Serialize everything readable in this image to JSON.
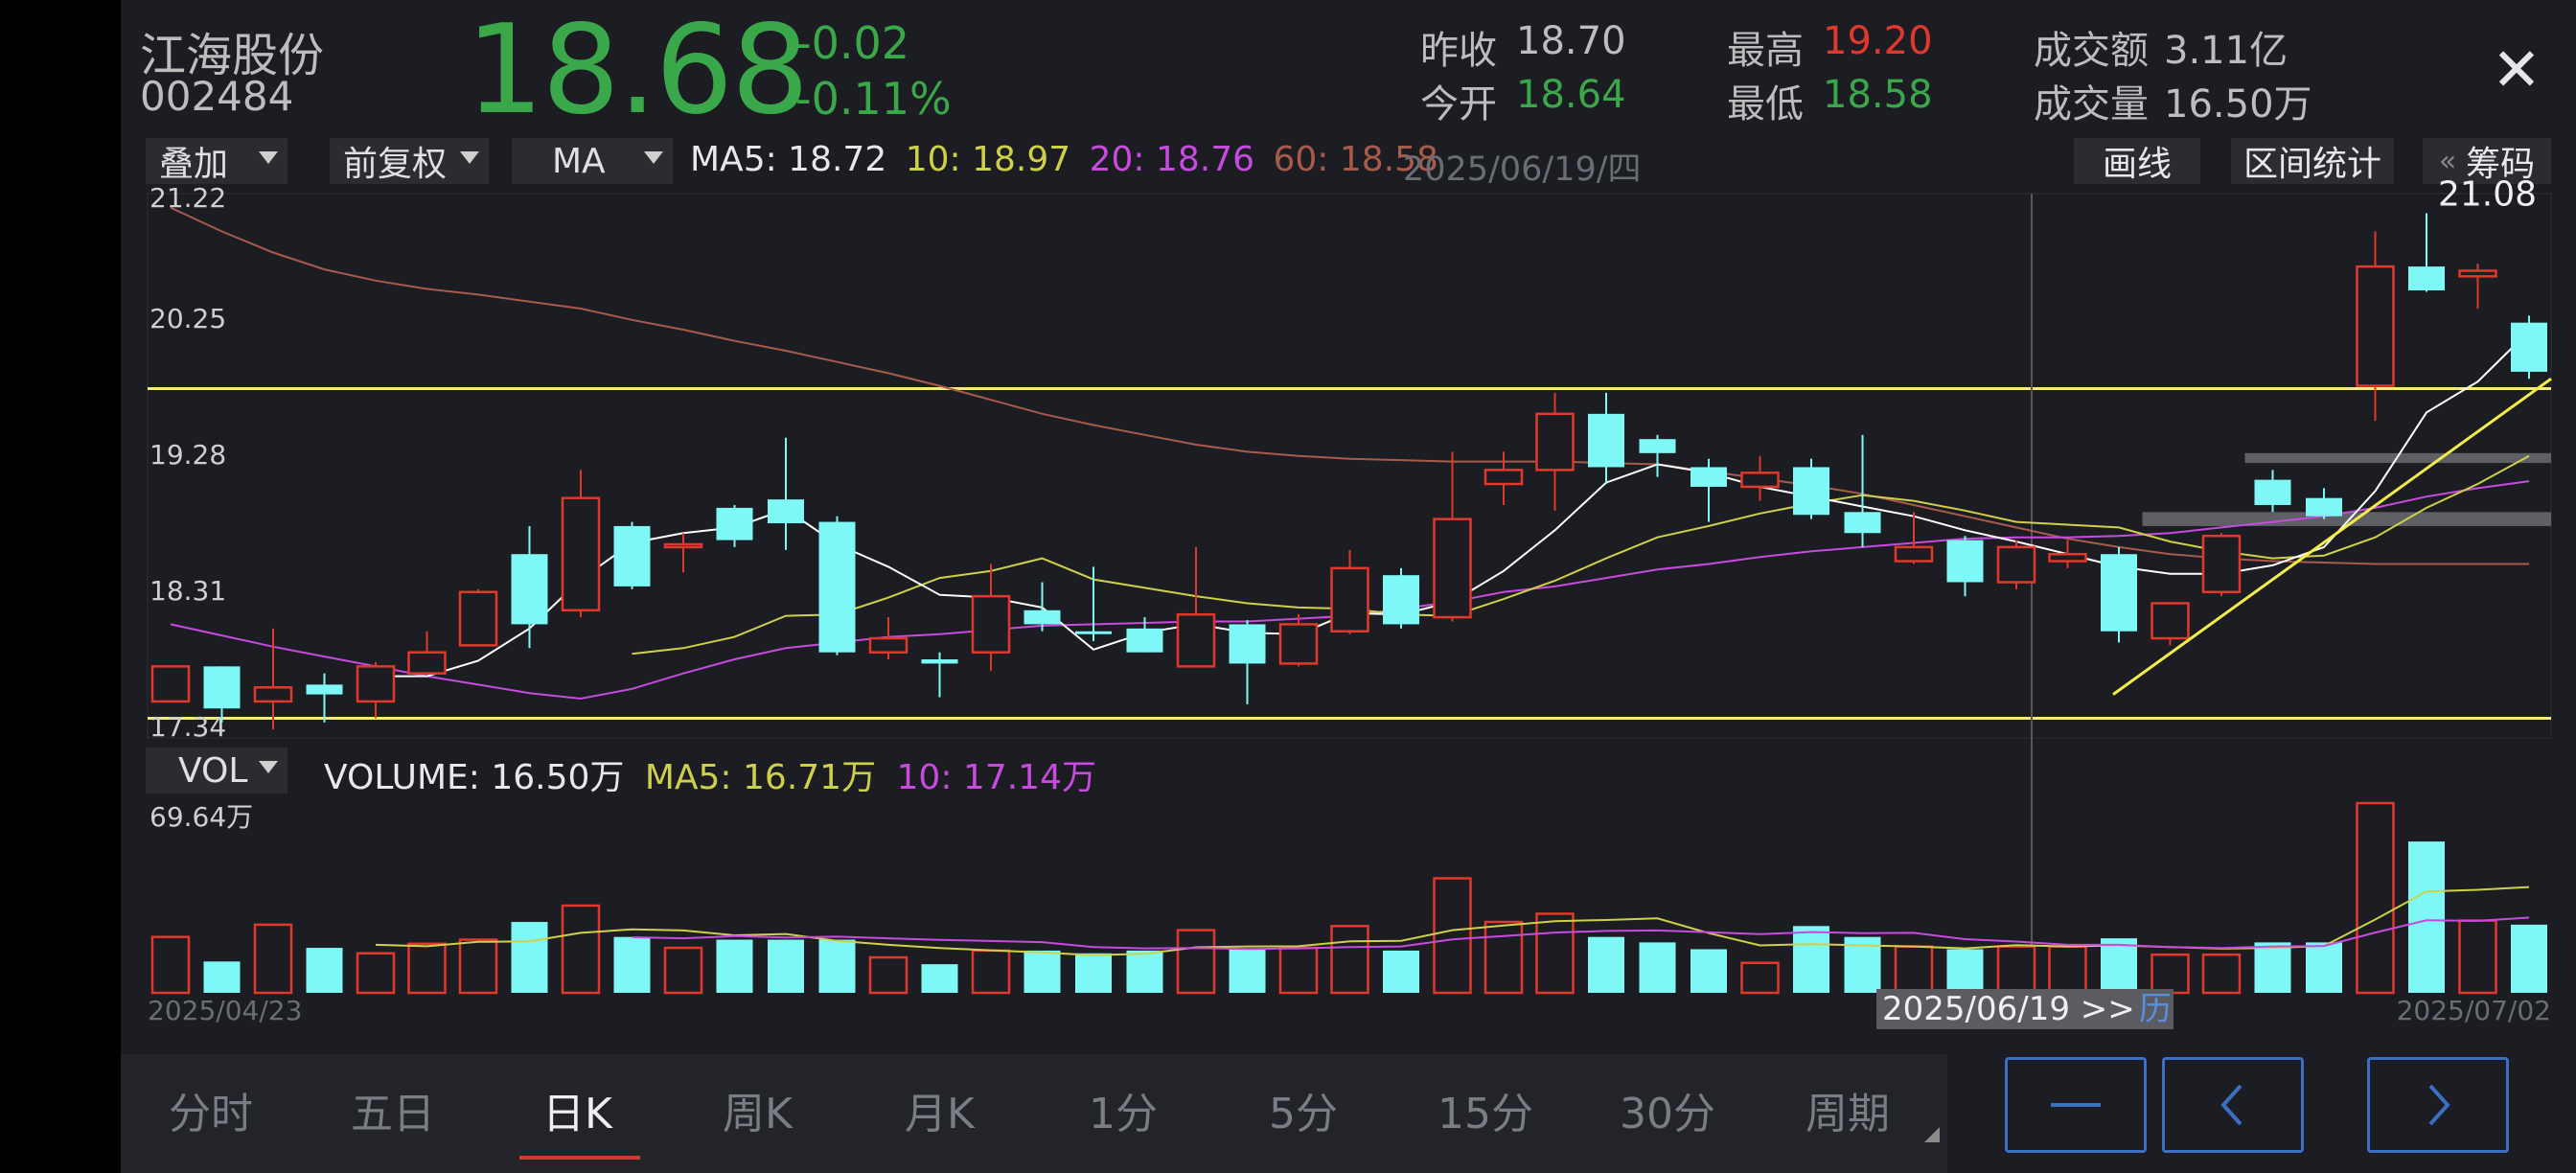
{
  "header": {
    "name": "江海股份",
    "code": "002484",
    "price": "18.68",
    "change": "-0.02",
    "change_pct": "-0.11%",
    "quotes": {
      "prev_close_label": "昨收",
      "prev_close": "18.70",
      "open_label": "今开",
      "open": "18.64",
      "high_label": "最高",
      "high": "19.20",
      "low_label": "最低",
      "low": "18.58",
      "amount_label": "成交额",
      "amount": "3.11亿",
      "volume_label": "成交量",
      "volume": "16.50万"
    },
    "close_icon": "✕"
  },
  "toolbar": {
    "overlay": "叠加",
    "adjust": "前复权",
    "indicator": "MA",
    "ma5": "MA5: 18.72",
    "ma10": "10: 18.97",
    "ma20": "20: 18.76",
    "ma60": "60: 18.58",
    "cursor_date": "2025/06/19/四",
    "draw_btn": "画线",
    "range_btn": "区间统计",
    "chips_arrow": "«",
    "chips_btn": "筹码"
  },
  "volume_panel": {
    "selector": "VOL",
    "volume": "VOLUME: 16.50万",
    "ma5": "MA5: 16.71万",
    "ma10": "10: 17.14万",
    "max_label": "69.64万"
  },
  "axis": {
    "start_date": "2025/04/23",
    "end_date": "2025/07/02",
    "crosshair_date": "2025/06/19 >>",
    "crosshair_hist": "历"
  },
  "tabs": [
    "分时",
    "五日",
    "日K",
    "周K",
    "月K",
    "1分",
    "5分",
    "15分",
    "30分",
    "周期"
  ],
  "active_tab": "日K",
  "nav": {
    "minus": "minus-icon",
    "prev": "chevron-left-icon",
    "next": "chevron-right-icon"
  },
  "colors": {
    "up": "#e0392b",
    "down": "#7ef7f7",
    "ma5": "#ffffff",
    "ma10": "#cfd04a",
    "ma20": "#c84adf",
    "ma60": "#a85b4b",
    "green": "#3aa84a",
    "red": "#e0392b"
  },
  "chart_data": {
    "type": "candlestick",
    "y_ticks": [
      21.22,
      20.25,
      19.28,
      18.31,
      17.34
    ],
    "ylim": [
      17.34,
      21.22
    ],
    "peak_label": "21.08",
    "candles": [
      {
        "o": 17.6,
        "c": 17.85,
        "h": 17.85,
        "l": 17.6
      },
      {
        "o": 17.85,
        "c": 17.55,
        "h": 17.85,
        "l": 17.45
      },
      {
        "o": 17.6,
        "c": 17.7,
        "h": 18.12,
        "l": 17.4
      },
      {
        "o": 17.72,
        "c": 17.65,
        "h": 17.8,
        "l": 17.45
      },
      {
        "o": 17.6,
        "c": 17.85,
        "h": 17.88,
        "l": 17.48
      },
      {
        "o": 17.8,
        "c": 17.95,
        "h": 18.1,
        "l": 17.8
      },
      {
        "o": 18.0,
        "c": 18.38,
        "h": 18.4,
        "l": 18.0
      },
      {
        "o": 18.65,
        "c": 18.15,
        "h": 18.85,
        "l": 17.98
      },
      {
        "o": 18.25,
        "c": 19.05,
        "h": 19.25,
        "l": 18.2
      },
      {
        "o": 18.85,
        "c": 18.42,
        "h": 18.88,
        "l": 18.4
      },
      {
        "o": 18.72,
        "c": 18.72,
        "h": 18.8,
        "l": 18.52
      },
      {
        "o": 18.98,
        "c": 18.75,
        "h": 19.0,
        "l": 18.7
      },
      {
        "o": 19.04,
        "c": 18.87,
        "h": 19.48,
        "l": 18.68
      },
      {
        "o": 18.88,
        "c": 17.95,
        "h": 18.92,
        "l": 17.93
      },
      {
        "o": 17.95,
        "c": 18.05,
        "h": 18.2,
        "l": 17.9
      },
      {
        "o": 17.9,
        "c": 17.87,
        "h": 17.95,
        "l": 17.63
      },
      {
        "o": 17.95,
        "c": 18.35,
        "h": 18.58,
        "l": 17.82
      },
      {
        "o": 18.25,
        "c": 18.15,
        "h": 18.45,
        "l": 18.1
      },
      {
        "o": 18.1,
        "c": 18.08,
        "h": 18.56,
        "l": 18.03
      },
      {
        "o": 18.12,
        "c": 17.95,
        "h": 18.2,
        "l": 17.95
      },
      {
        "o": 17.85,
        "c": 18.22,
        "h": 18.7,
        "l": 17.85
      },
      {
        "o": 18.15,
        "c": 17.87,
        "h": 18.18,
        "l": 17.58
      },
      {
        "o": 17.87,
        "c": 18.15,
        "h": 18.22,
        "l": 17.85
      },
      {
        "o": 18.1,
        "c": 18.55,
        "h": 18.68,
        "l": 18.08
      },
      {
        "o": 18.5,
        "c": 18.15,
        "h": 18.55,
        "l": 18.12
      },
      {
        "o": 18.2,
        "c": 18.9,
        "h": 19.38,
        "l": 18.17
      },
      {
        "o": 19.15,
        "c": 19.25,
        "h": 19.38,
        "l": 19.0
      },
      {
        "o": 19.25,
        "c": 19.65,
        "h": 19.8,
        "l": 18.96
      },
      {
        "o": 19.65,
        "c": 19.27,
        "h": 19.8,
        "l": 19.15
      },
      {
        "o": 19.47,
        "c": 19.37,
        "h": 19.5,
        "l": 19.2
      },
      {
        "o": 19.27,
        "c": 19.13,
        "h": 19.33,
        "l": 18.88
      },
      {
        "o": 19.13,
        "c": 19.23,
        "h": 19.35,
        "l": 19.03
      },
      {
        "o": 19.27,
        "c": 18.93,
        "h": 19.33,
        "l": 18.9
      },
      {
        "o": 18.95,
        "c": 18.8,
        "h": 19.5,
        "l": 18.7
      },
      {
        "o": 18.6,
        "c": 18.7,
        "h": 18.95,
        "l": 18.58
      },
      {
        "o": 18.75,
        "c": 18.45,
        "h": 18.78,
        "l": 18.35
      },
      {
        "o": 18.45,
        "c": 18.7,
        "h": 18.75,
        "l": 18.4
      },
      {
        "o": 18.6,
        "c": 18.65,
        "h": 18.75,
        "l": 18.55
      },
      {
        "o": 18.65,
        "c": 18.1,
        "h": 18.7,
        "l": 18.02
      },
      {
        "o": 18.05,
        "c": 18.3,
        "h": 18.3,
        "l": 18.0
      },
      {
        "o": 18.38,
        "c": 18.78,
        "h": 18.8,
        "l": 18.35
      },
      {
        "o": 19.18,
        "c": 19.0,
        "h": 19.25,
        "l": 18.95
      },
      {
        "o": 19.05,
        "c": 18.92,
        "h": 19.12,
        "l": 18.9
      },
      {
        "o": 19.85,
        "c": 20.7,
        "h": 20.95,
        "l": 19.6
      },
      {
        "o": 20.7,
        "c": 20.53,
        "h": 21.08,
        "l": 20.52
      },
      {
        "o": 20.63,
        "c": 20.67,
        "h": 20.72,
        "l": 20.4
      },
      {
        "o": 20.3,
        "c": 19.95,
        "h": 20.35,
        "l": 19.9
      }
    ],
    "ma5": [
      null,
      null,
      null,
      null,
      17.78,
      17.78,
      17.89,
      18.12,
      18.47,
      18.73,
      18.8,
      18.84,
      18.97,
      18.72,
      18.56,
      18.36,
      18.34,
      18.27,
      17.97,
      18.09,
      18.15,
      18.09,
      18.08,
      18.23,
      18.22,
      18.31,
      18.53,
      18.82,
      19.16,
      19.29,
      19.23,
      19.13,
      19.06,
      18.99,
      18.92,
      18.82,
      18.74,
      18.65,
      18.56,
      18.51,
      18.51,
      18.57,
      18.7,
      19.1,
      19.66,
      19.88,
      20.24
    ],
    "ma10": [
      null,
      null,
      null,
      null,
      null,
      null,
      null,
      null,
      null,
      17.94,
      17.98,
      18.06,
      18.21,
      18.22,
      18.34,
      18.48,
      18.53,
      18.62,
      18.47,
      18.41,
      18.35,
      18.3,
      18.27,
      18.26,
      18.22,
      18.21,
      18.33,
      18.46,
      18.62,
      18.77,
      18.85,
      18.94,
      19.01,
      19.07,
      19.03,
      18.96,
      18.88,
      18.86,
      18.84,
      18.74,
      18.67,
      18.62,
      18.64,
      18.77,
      18.98,
      19.15,
      19.35
    ],
    "ma20": [
      18.15,
      18.07,
      17.99,
      17.92,
      17.85,
      17.78,
      17.72,
      17.66,
      17.62,
      17.69,
      17.8,
      17.9,
      17.98,
      18.02,
      18.06,
      18.08,
      18.11,
      18.14,
      18.15,
      18.16,
      18.17,
      18.17,
      18.19,
      18.21,
      18.26,
      18.31,
      18.38,
      18.42,
      18.48,
      18.54,
      18.58,
      18.63,
      18.67,
      18.7,
      18.73,
      18.76,
      18.77,
      18.77,
      18.78,
      18.8,
      18.84,
      18.88,
      18.92,
      18.98,
      19.06,
      19.12,
      19.17
    ],
    "ma60": [
      21.12,
      20.95,
      20.8,
      20.68,
      20.6,
      20.54,
      20.5,
      20.45,
      20.4,
      20.32,
      20.25,
      20.17,
      20.1,
      20.02,
      19.94,
      19.85,
      19.75,
      19.65,
      19.57,
      19.5,
      19.43,
      19.38,
      19.35,
      19.33,
      19.32,
      19.31,
      19.31,
      19.31,
      19.3,
      19.29,
      19.24,
      19.19,
      19.14,
      19.08,
      19.0,
      18.92,
      18.84,
      18.76,
      18.7,
      18.65,
      18.62,
      18.6,
      18.59,
      18.58,
      18.58,
      18.58,
      18.58
    ],
    "support_lines": [
      17.48,
      19.83
    ],
    "trendline": [
      {
        "i": 38,
        "p": 17.65
      },
      {
        "i": 46,
        "p": 19.9
      }
    ],
    "chip_zones": [
      {
        "start": 41,
        "low": 19.3,
        "high": 19.37
      },
      {
        "start": 39,
        "low": 18.85,
        "high": 18.95
      }
    ],
    "volume_max_label": "69.64万",
    "volumes": [
      20.5,
      11.5,
      25.0,
      16.5,
      14.5,
      18.0,
      19.5,
      26.0,
      32.0,
      20.5,
      16.5,
      19.5,
      19.5,
      19.5,
      13.0,
      10.5,
      15.5,
      15.5,
      14.5,
      15.5,
      23.0,
      16.0,
      16.5,
      24.5,
      15.5,
      42.0,
      26.0,
      29.0,
      20.5,
      18.5,
      16.0,
      11.0,
      24.5,
      20.5,
      17.0,
      16.0,
      17.0,
      17.0,
      20.0,
      14.0,
      14.0,
      18.5,
      18.5,
      69.6,
      55.5,
      26.5,
      25.0
    ],
    "vol_ma5": [
      null,
      null,
      null,
      null,
      17.6,
      17.1,
      18.7,
      18.9,
      22.0,
      23.3,
      22.9,
      21.1,
      21.6,
      19.1,
      17.6,
      16.4,
      15.6,
      14.8,
      13.8,
      14.3,
      16.7,
      17.0,
      17.1,
      18.9,
      19.1,
      23.0,
      24.7,
      26.3,
      26.7,
      27.3,
      21.9,
      17.4,
      17.9,
      17.4,
      17.0,
      16.3,
      17.5,
      17.0,
      17.4,
      16.8,
      16.2,
      16.5,
      17.2,
      26.9,
      37.2,
      37.8,
      38.8
    ],
    "vol_ma10": [
      null,
      null,
      null,
      null,
      null,
      null,
      null,
      null,
      null,
      20.4,
      20.0,
      20.8,
      20.3,
      20.6,
      20.0,
      19.4,
      19.0,
      18.6,
      16.8,
      16.3,
      16.4,
      16.1,
      16.3,
      16.8,
      17.0,
      19.6,
      20.8,
      22.1,
      22.7,
      22.9,
      22.2,
      21.5,
      22.3,
      21.9,
      22.0,
      19.7,
      18.8,
      17.6,
      17.6,
      16.8,
      16.4,
      17.0,
      17.2,
      22.1,
      26.6,
      26.4,
      27.6
    ]
  }
}
